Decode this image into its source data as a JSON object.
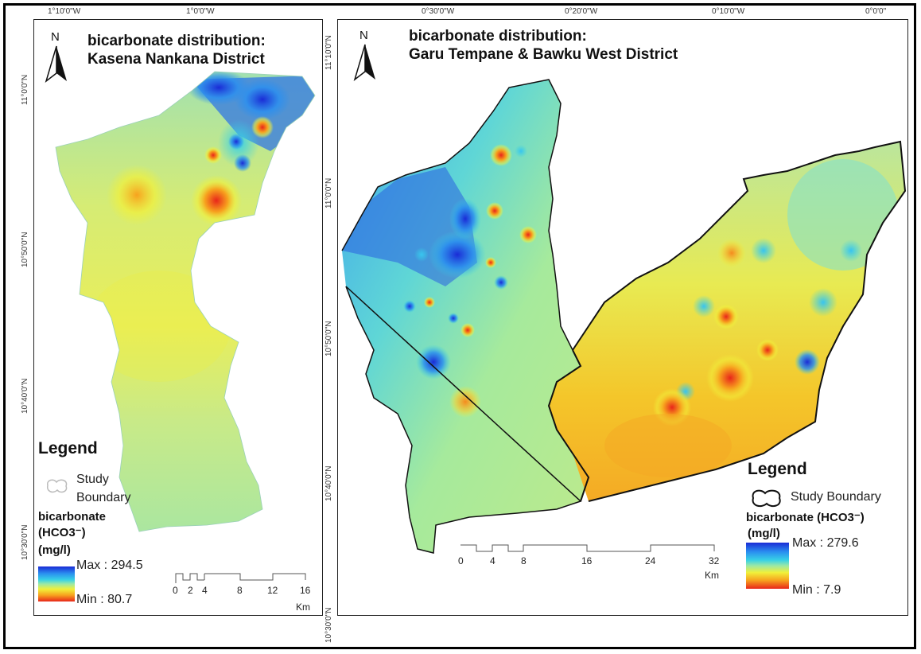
{
  "left_map": {
    "title_line1": "bicarbonate distribution:",
    "title_line2": "Kasena Nankana District",
    "north": "N",
    "top_coords": [
      "1°10'0\"W",
      "1°0'0\"W"
    ],
    "left_coords": [
      "11°0'0\"N",
      "10°50'0\"N",
      "10°40'0\"N",
      "10°30'0\"N"
    ],
    "legend": {
      "title": "Legend",
      "boundary_label_1": "Study",
      "boundary_label_2": "Boundary",
      "param_line1": "bicarbonate",
      "param_line2": "(HCO3⁻)",
      "param_line3": "(mg/l)",
      "max_label": "Max : 294.5",
      "min_label": "Min : 80.7"
    },
    "scale": {
      "ticks": [
        "0",
        "2",
        "4",
        "8",
        "12",
        "16"
      ],
      "unit": "Km"
    }
  },
  "right_map": {
    "title_line1": "bicarbonate distribution:",
    "title_line2": "Garu Tempane & Bawku West District",
    "north": "N",
    "top_coords": [
      "0°30'0\"W",
      "0°20'0\"W",
      "0°10'0\"W",
      "0°0'0\""
    ],
    "left_coords": [
      "11°10'0\"N",
      "11°0'0\"N",
      "10°50'0\"N",
      "10°40'0\"N",
      "10°30'0\"N"
    ],
    "legend": {
      "title": "Legend",
      "boundary_label": "Study Boundary",
      "param_line1": "bicarbonate (HCO3⁻)",
      "param_line2": "(mg/l)",
      "max_label": "Max : 279.6",
      "min_label": "Min : 7.9"
    },
    "scale": {
      "ticks": [
        "0",
        "4",
        "8",
        "16",
        "24",
        "32"
      ],
      "unit": "Km"
    }
  },
  "colors": {
    "high": "#1a2bd6",
    "mid": "#9be8a6",
    "low": "#e8261a",
    "boundary": "#111111"
  }
}
